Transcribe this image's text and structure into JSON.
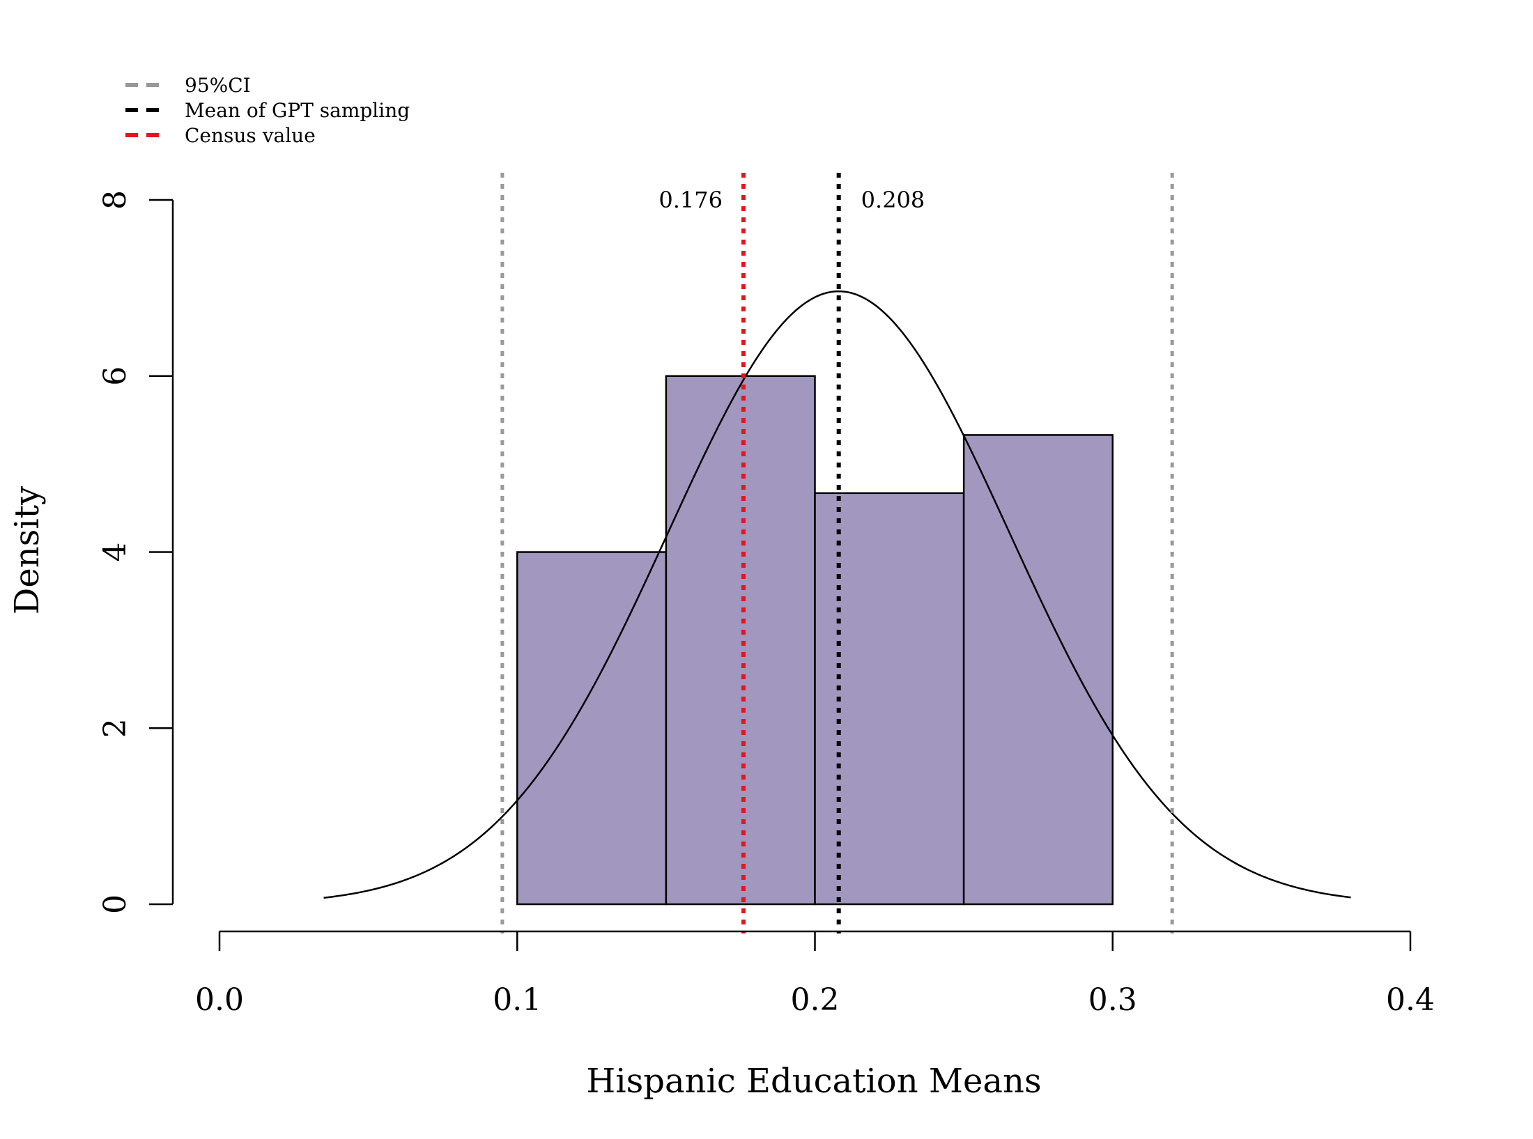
{
  "chart_data": {
    "type": "histogram",
    "xlabel": "Hispanic Education Means",
    "ylabel": "Density",
    "xlim": [
      0.0,
      0.4
    ],
    "ylim": [
      0,
      8
    ],
    "x_ticks": [
      {
        "value": 0.0,
        "label": "0.0"
      },
      {
        "value": 0.1,
        "label": "0.1"
      },
      {
        "value": 0.2,
        "label": "0.2"
      },
      {
        "value": 0.3,
        "label": "0.3"
      },
      {
        "value": 0.4,
        "label": "0.4"
      }
    ],
    "y_ticks": [
      {
        "value": 0,
        "label": "0"
      },
      {
        "value": 2,
        "label": "2"
      },
      {
        "value": 4,
        "label": "4"
      },
      {
        "value": 6,
        "label": "6"
      },
      {
        "value": 8,
        "label": "8"
      }
    ],
    "bins": [
      {
        "from": 0.1,
        "to": 0.15,
        "density": 4.0
      },
      {
        "from": 0.15,
        "to": 0.2,
        "density": 6.0
      },
      {
        "from": 0.2,
        "to": 0.25,
        "density": 4.67
      },
      {
        "from": 0.25,
        "to": 0.3,
        "density": 5.33
      }
    ],
    "bar_color": "#a197bf",
    "normal_curve": {
      "mean": 0.208,
      "sd": 0.0573,
      "x_from": 0.035,
      "x_to": 0.38,
      "color": "#000000"
    },
    "reference_lines": [
      {
        "name": "ci-lower",
        "x": 0.095,
        "color": "#999999",
        "legend": "95%CI"
      },
      {
        "name": "ci-upper",
        "x": 0.32,
        "color": "#999999",
        "legend": "95%CI"
      },
      {
        "name": "gpt-mean",
        "x": 0.208,
        "color": "#000000",
        "legend": "Mean of GPT sampling",
        "annotation": "0.208"
      },
      {
        "name": "census",
        "x": 0.176,
        "color": "#e8141b",
        "legend": "Census value",
        "annotation": "0.176"
      }
    ],
    "legend": {
      "position": "top-left",
      "entries": [
        {
          "label": "95%CI",
          "color": "#999999"
        },
        {
          "label": "Mean of GPT sampling",
          "color": "#000000"
        },
        {
          "label": "Census value",
          "color": "#e8141b"
        }
      ]
    }
  }
}
